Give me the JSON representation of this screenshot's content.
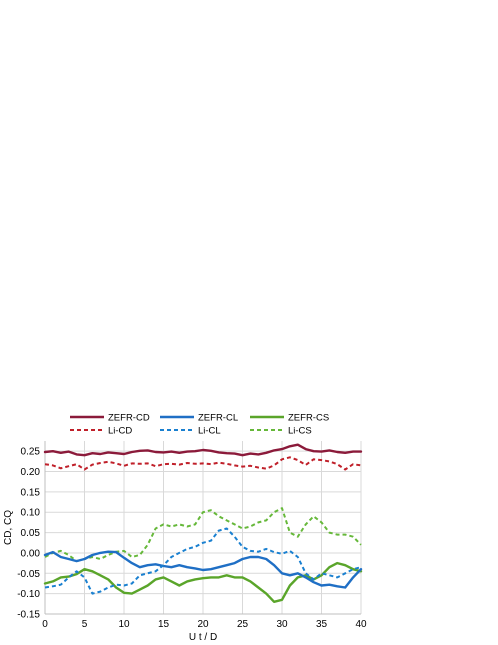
{
  "chart_data": {
    "type": "line",
    "title": "",
    "xlabel": "U t / D",
    "ylabel": "CD, CQ",
    "xlim": [
      0,
      40
    ],
    "ylim": [
      -0.15,
      0.275
    ],
    "xticks": [
      0,
      5,
      10,
      15,
      20,
      25,
      30,
      35,
      40
    ],
    "xtick_labels": [
      "0",
      "5",
      "10",
      "15",
      "20",
      "25",
      "30",
      "35",
      "40"
    ],
    "yticks": [
      0.25,
      0.2,
      0.15,
      0.1,
      0.05,
      0.0,
      -0.05,
      -0.1,
      -0.15
    ],
    "ytick_labels": [
      "0.25",
      "0.20",
      "0.15",
      "0.10",
      "0.05",
      "0.00",
      "-0.05",
      "-0.10",
      "-0.15"
    ],
    "grid": true,
    "legend_position": "top",
    "series": [
      {
        "name": "ZEFR-CD",
        "color": "#8b1a3a",
        "style": "solid",
        "x": [
          0,
          1,
          2,
          3,
          4,
          5,
          6,
          7,
          8,
          9,
          10,
          11,
          12,
          13,
          14,
          15,
          16,
          17,
          18,
          19,
          20,
          21,
          22,
          23,
          24,
          25,
          26,
          27,
          28,
          29,
          30,
          31,
          32,
          33,
          34,
          35,
          36,
          37,
          38,
          39,
          40
        ],
        "y": [
          0.248,
          0.25,
          0.246,
          0.249,
          0.242,
          0.24,
          0.245,
          0.243,
          0.247,
          0.245,
          0.243,
          0.248,
          0.251,
          0.252,
          0.248,
          0.247,
          0.249,
          0.246,
          0.249,
          0.25,
          0.253,
          0.251,
          0.247,
          0.245,
          0.244,
          0.24,
          0.244,
          0.242,
          0.246,
          0.252,
          0.255,
          0.262,
          0.266,
          0.255,
          0.25,
          0.249,
          0.252,
          0.248,
          0.246,
          0.249,
          0.249
        ]
      },
      {
        "name": "Li-CD",
        "color": "#c0202a",
        "style": "dashed",
        "x": [
          0,
          1,
          2,
          3,
          4,
          5,
          6,
          7,
          8,
          9,
          10,
          11,
          12,
          13,
          14,
          15,
          16,
          17,
          18,
          19,
          20,
          21,
          22,
          23,
          24,
          25,
          26,
          27,
          28,
          29,
          30,
          31,
          32,
          33,
          34,
          35,
          36,
          37,
          38,
          39,
          40
        ],
        "y": [
          0.218,
          0.215,
          0.208,
          0.213,
          0.218,
          0.205,
          0.217,
          0.221,
          0.224,
          0.22,
          0.214,
          0.22,
          0.219,
          0.22,
          0.213,
          0.218,
          0.219,
          0.217,
          0.221,
          0.219,
          0.22,
          0.218,
          0.222,
          0.219,
          0.215,
          0.212,
          0.214,
          0.21,
          0.207,
          0.215,
          0.23,
          0.235,
          0.228,
          0.216,
          0.23,
          0.228,
          0.225,
          0.218,
          0.205,
          0.218,
          0.215
        ]
      },
      {
        "name": "ZEFR-CL",
        "color": "#1f6fc5",
        "style": "solid",
        "x": [
          0,
          1,
          2,
          3,
          4,
          5,
          6,
          7,
          8,
          9,
          10,
          11,
          12,
          13,
          14,
          15,
          16,
          17,
          18,
          19,
          20,
          21,
          22,
          23,
          24,
          25,
          26,
          27,
          28,
          29,
          30,
          31,
          32,
          33,
          34,
          35,
          36,
          37,
          38,
          39,
          40
        ],
        "y": [
          -0.005,
          0.002,
          -0.01,
          -0.015,
          -0.02,
          -0.015,
          -0.005,
          0.0,
          0.003,
          0.002,
          -0.012,
          -0.025,
          -0.035,
          -0.03,
          -0.028,
          -0.032,
          -0.035,
          -0.03,
          -0.035,
          -0.038,
          -0.042,
          -0.04,
          -0.035,
          -0.03,
          -0.025,
          -0.015,
          -0.01,
          -0.01,
          -0.015,
          -0.03,
          -0.05,
          -0.055,
          -0.05,
          -0.06,
          -0.072,
          -0.08,
          -0.078,
          -0.082,
          -0.085,
          -0.06,
          -0.04
        ]
      },
      {
        "name": "Li-CL",
        "color": "#1a80d0",
        "style": "dashed",
        "x": [
          0,
          1,
          2,
          3,
          4,
          5,
          6,
          7,
          8,
          9,
          10,
          11,
          12,
          13,
          14,
          15,
          16,
          17,
          18,
          19,
          20,
          21,
          22,
          23,
          24,
          25,
          26,
          27,
          28,
          29,
          30,
          31,
          32,
          33,
          34,
          35,
          36,
          37,
          38,
          39,
          40
        ],
        "y": [
          -0.085,
          -0.082,
          -0.078,
          -0.06,
          -0.045,
          -0.06,
          -0.1,
          -0.095,
          -0.085,
          -0.078,
          -0.08,
          -0.075,
          -0.055,
          -0.05,
          -0.045,
          -0.03,
          -0.01,
          0.0,
          0.01,
          0.015,
          0.025,
          0.03,
          0.055,
          0.06,
          0.04,
          0.015,
          0.005,
          0.003,
          0.01,
          0.002,
          -0.002,
          0.005,
          -0.01,
          -0.05,
          -0.065,
          -0.05,
          -0.055,
          -0.06,
          -0.05,
          -0.04,
          -0.035
        ]
      },
      {
        "name": "ZEFR-CS",
        "color": "#5aa52a",
        "style": "solid",
        "x": [
          0,
          1,
          2,
          3,
          4,
          5,
          6,
          7,
          8,
          9,
          10,
          11,
          12,
          13,
          14,
          15,
          16,
          17,
          18,
          19,
          20,
          21,
          22,
          23,
          24,
          25,
          26,
          27,
          28,
          29,
          30,
          31,
          32,
          33,
          34,
          35,
          36,
          37,
          38,
          39,
          40
        ],
        "y": [
          -0.075,
          -0.07,
          -0.06,
          -0.058,
          -0.052,
          -0.04,
          -0.045,
          -0.055,
          -0.065,
          -0.085,
          -0.098,
          -0.1,
          -0.09,
          -0.08,
          -0.065,
          -0.06,
          -0.07,
          -0.08,
          -0.07,
          -0.065,
          -0.062,
          -0.06,
          -0.06,
          -0.055,
          -0.06,
          -0.06,
          -0.07,
          -0.085,
          -0.1,
          -0.12,
          -0.115,
          -0.08,
          -0.06,
          -0.055,
          -0.065,
          -0.055,
          -0.035,
          -0.025,
          -0.03,
          -0.04,
          -0.045
        ]
      },
      {
        "name": "Li-CS",
        "color": "#66b83a",
        "style": "dashed",
        "x": [
          0,
          1,
          2,
          3,
          4,
          5,
          6,
          7,
          8,
          9,
          10,
          11,
          12,
          13,
          14,
          15,
          16,
          17,
          18,
          19,
          20,
          21,
          22,
          23,
          24,
          25,
          26,
          27,
          28,
          29,
          30,
          31,
          32,
          33,
          34,
          35,
          36,
          37,
          38,
          39,
          40
        ],
        "y": [
          -0.01,
          0.0,
          0.005,
          -0.005,
          -0.02,
          -0.015,
          -0.01,
          -0.015,
          -0.005,
          0.003,
          0.005,
          -0.01,
          -0.005,
          0.02,
          0.06,
          0.07,
          0.065,
          0.07,
          0.065,
          0.07,
          0.1,
          0.105,
          0.09,
          0.08,
          0.07,
          0.06,
          0.065,
          0.075,
          0.08,
          0.1,
          0.11,
          0.05,
          0.04,
          0.07,
          0.09,
          0.075,
          0.05,
          0.045,
          0.045,
          0.04,
          0.02
        ]
      }
    ]
  }
}
